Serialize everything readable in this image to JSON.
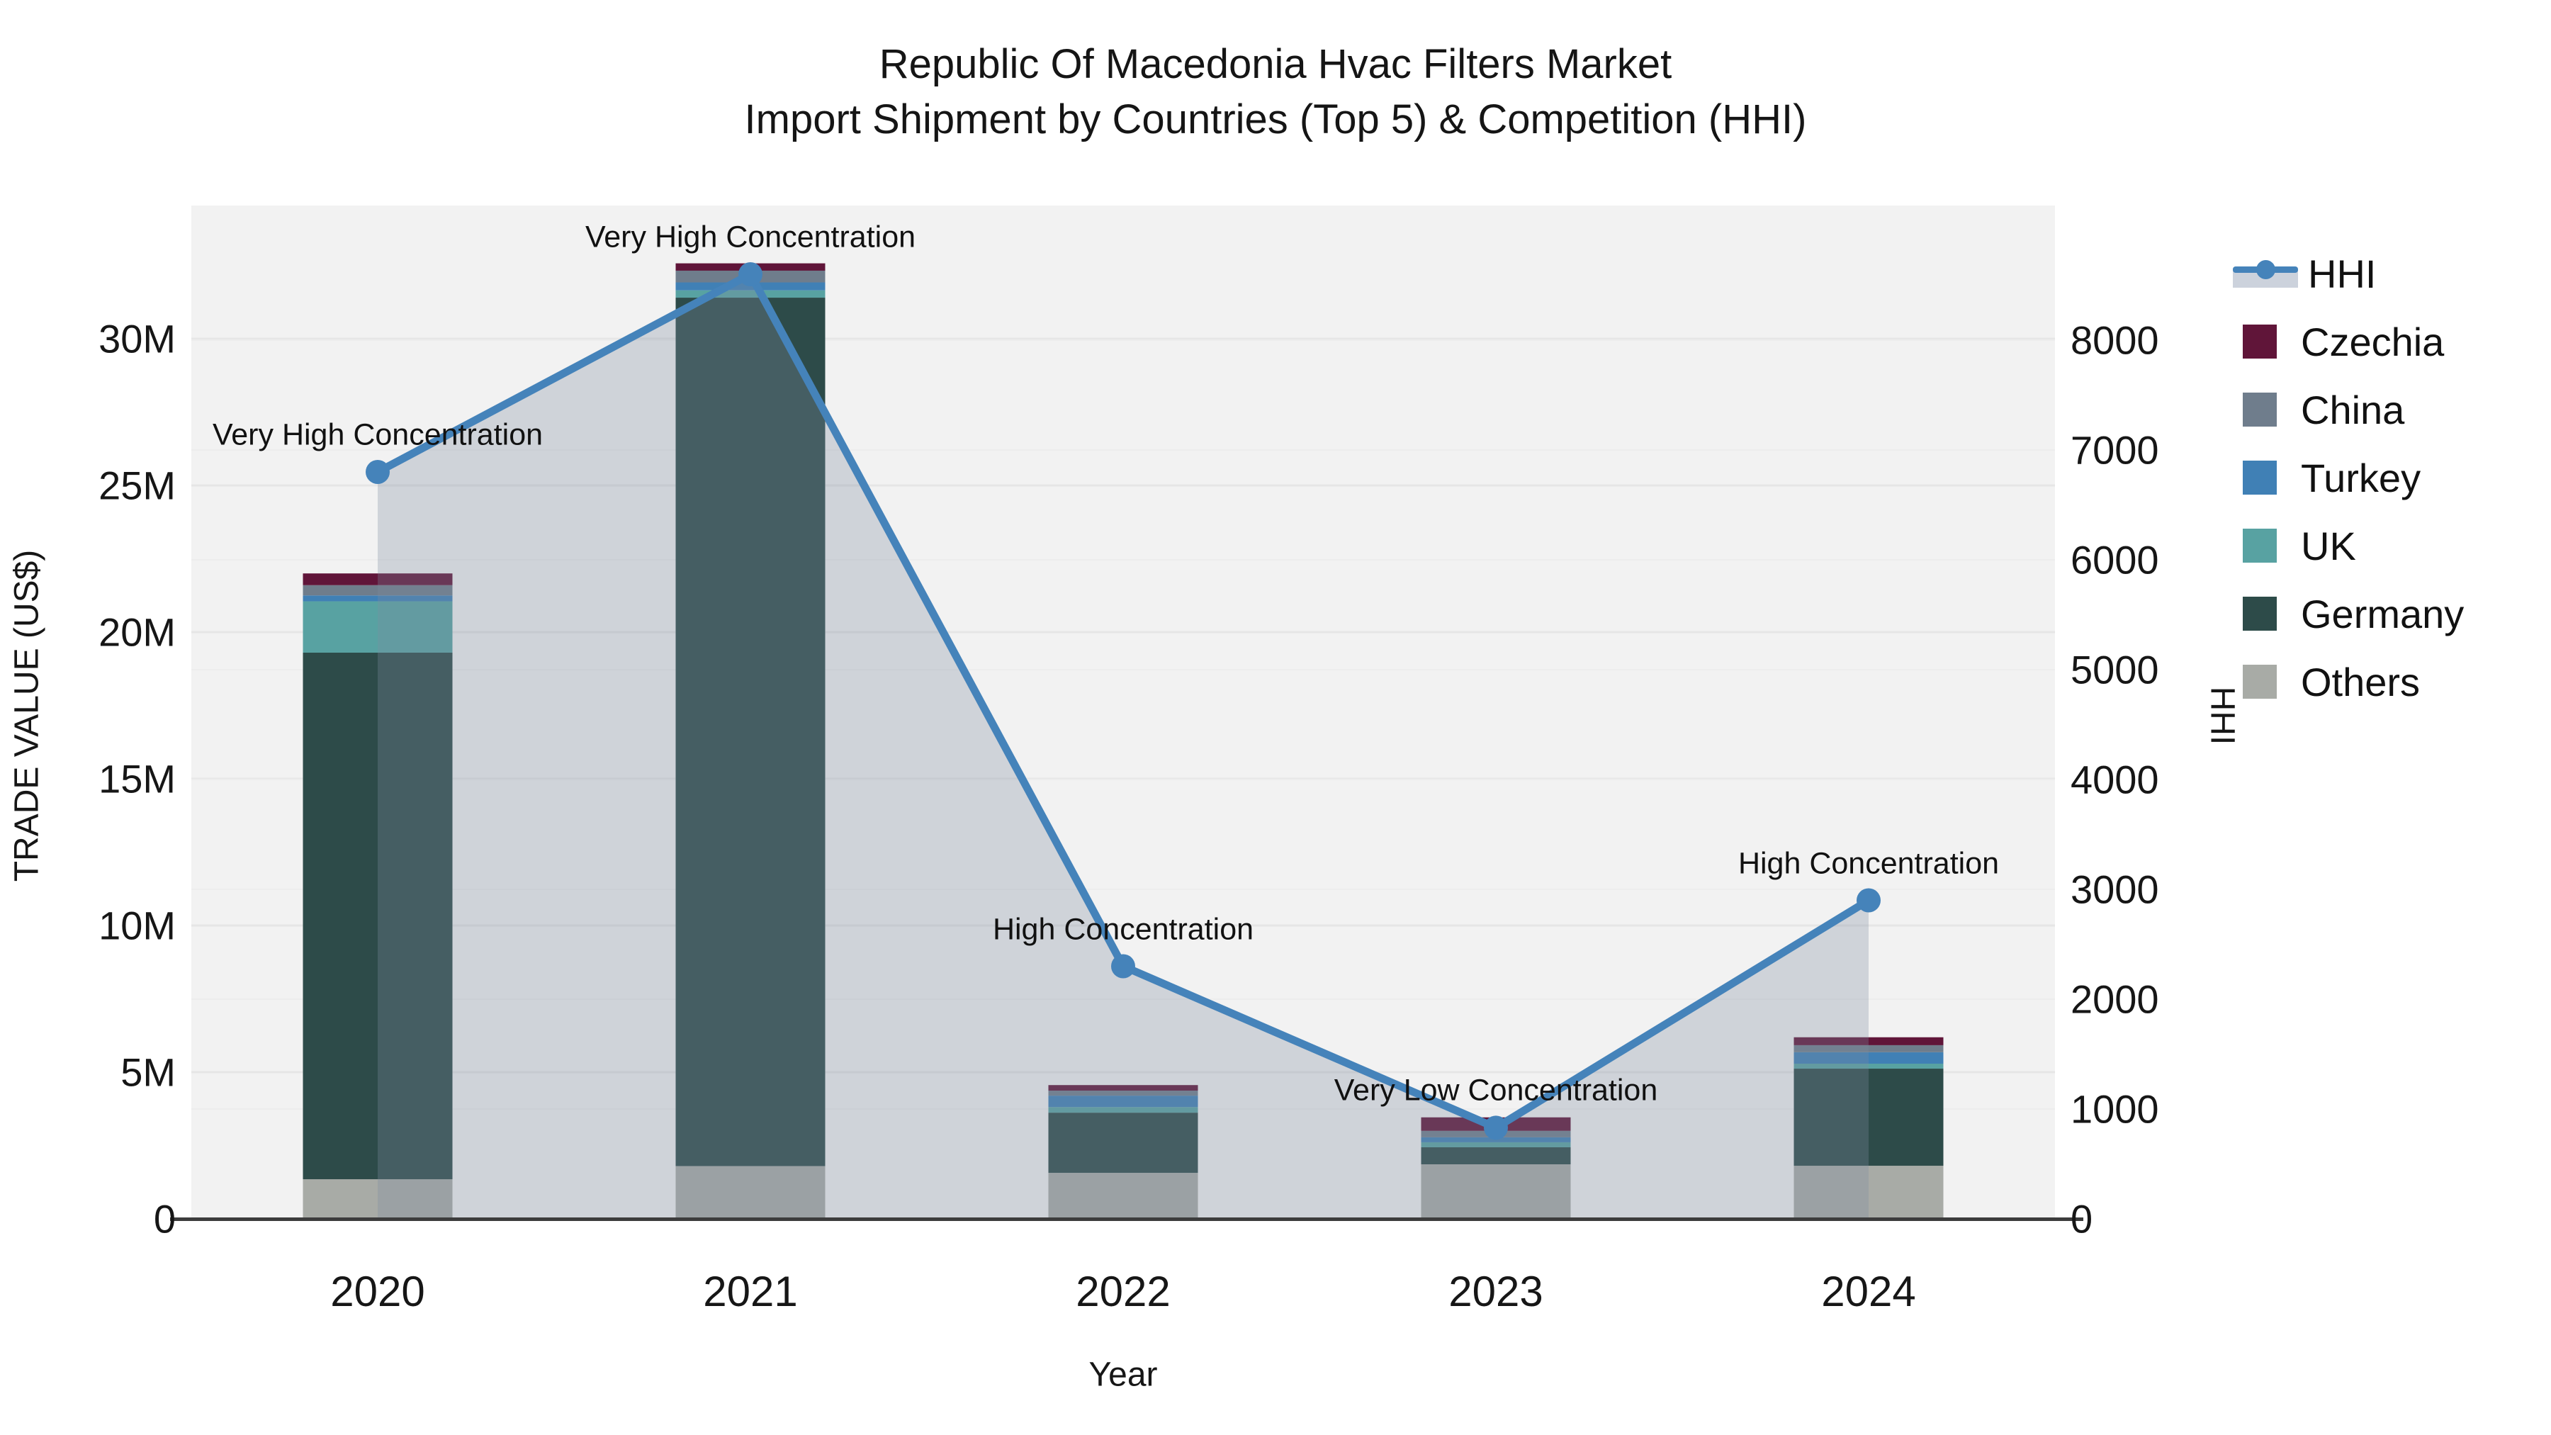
{
  "title": {
    "line1": "Republic Of Macedonia Hvac Filters Market",
    "line2": "Import Shipment by Countries (Top 5) & Competition (HHI)"
  },
  "axes": {
    "x": {
      "label": "Year",
      "categories": [
        "2020",
        "2021",
        "2022",
        "2023",
        "2024"
      ]
    },
    "y_left": {
      "label": "TRADE VALUE (US$)",
      "ticks": [
        "0",
        "5M",
        "10M",
        "15M",
        "20M",
        "25M",
        "30M"
      ]
    },
    "y_right": {
      "label": "HHI",
      "ticks": [
        "0",
        "1000",
        "2000",
        "3000",
        "4000",
        "5000",
        "6000",
        "7000",
        "8000"
      ]
    }
  },
  "legend": [
    {
      "label": "HHI",
      "type": "line",
      "color": "#4583ba"
    },
    {
      "label": "Czechia",
      "type": "swatch",
      "color": "#601539"
    },
    {
      "label": "China",
      "type": "swatch",
      "color": "#6f7d8c"
    },
    {
      "label": "Turkey",
      "type": "swatch",
      "color": "#4080b5"
    },
    {
      "label": "UK",
      "type": "swatch",
      "color": "#58a2a2"
    },
    {
      "label": "Germany",
      "type": "swatch",
      "color": "#2d4b49"
    },
    {
      "label": "Others",
      "type": "swatch",
      "color": "#a8aba6"
    }
  ],
  "annotations": [
    {
      "year": "2020",
      "text": "Very High Concentration"
    },
    {
      "year": "2021",
      "text": "Very High Concentration"
    },
    {
      "year": "2022",
      "text": "High Concentration"
    },
    {
      "year": "2023",
      "text": "Very Low Concentration"
    },
    {
      "year": "2024",
      "text": "High Concentration"
    }
  ],
  "chart_data": {
    "type": "bar",
    "subtype": "stacked-bars-with-line",
    "title": "Republic Of Macedonia Hvac Filters Market — Import Shipment by Countries (Top 5) & Competition (HHI)",
    "xlabel": "Year",
    "ylabel_left": "TRADE VALUE (US$)",
    "ylabel_right": "HHI",
    "ylim_left": [
      0,
      34500000
    ],
    "ylim_right": [
      0,
      9225
    ],
    "grid": true,
    "legend_position": "right",
    "categories": [
      "2020",
      "2021",
      "2022",
      "2023",
      "2024"
    ],
    "series": [
      {
        "name": "Others",
        "color": "#a8aba6",
        "values": [
          1350000,
          1800000,
          1570000,
          1860000,
          1810000
        ]
      },
      {
        "name": "Germany",
        "color": "#2d4b49",
        "values": [
          17950000,
          29600000,
          2050000,
          580000,
          3310000
        ]
      },
      {
        "name": "UK",
        "color": "#58a2a2",
        "values": [
          1750000,
          250000,
          190000,
          170000,
          170000
        ]
      },
      {
        "name": "Turkey",
        "color": "#4080b5",
        "values": [
          200000,
          270000,
          390000,
          170000,
          390000
        ]
      },
      {
        "name": "China",
        "color": "#6f7d8c",
        "values": [
          350000,
          400000,
          170000,
          220000,
          240000
        ]
      },
      {
        "name": "Czechia",
        "color": "#601539",
        "values": [
          400000,
          250000,
          190000,
          460000,
          270000
        ]
      }
    ],
    "totals": [
      22000000,
      32570000,
      4560000,
      3460000,
      6190000
    ],
    "line_series": {
      "name": "HHI",
      "axis": "right",
      "color": "#4583ba",
      "fill_color": "rgba(125,140,160,0.3)",
      "values": [
        6800,
        8600,
        2300,
        830,
        2900
      ]
    }
  },
  "colors": {
    "plot_bg": "#f2f2f2",
    "grid_major": "#e6e6e6",
    "grid_minor": "#ededed",
    "axis_line": "#3c3c3c",
    "text": "#161616"
  }
}
